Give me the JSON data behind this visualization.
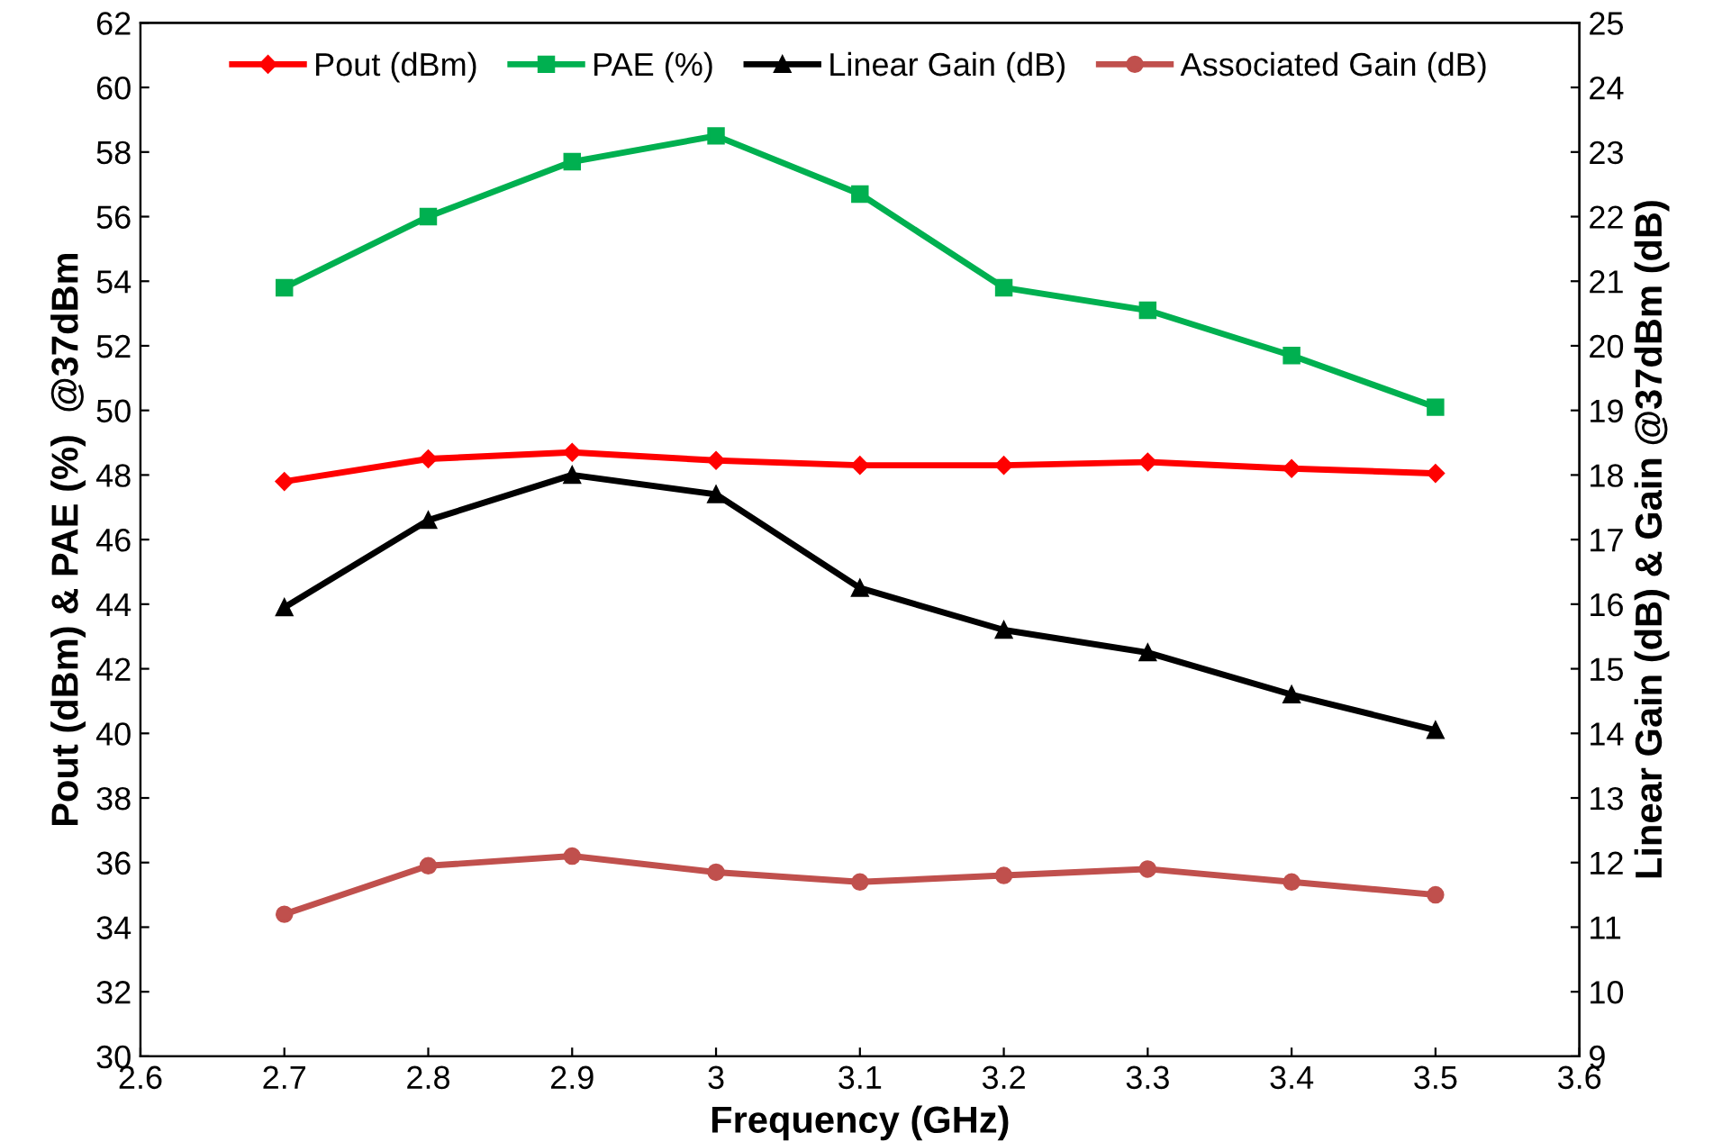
{
  "chart_data": {
    "type": "line",
    "xlabel": "Frequency (GHz)",
    "ylabel": "Pout (dBm) & PAE (%)  @37dBm",
    "y2label": "Linear Gain (dB) & Gain @37dBm (dB)",
    "x": [
      2.7,
      2.8,
      2.9,
      3.0,
      3.1,
      3.2,
      3.3,
      3.4,
      3.5
    ],
    "series": [
      {
        "name": "Pout (dBm)",
        "color": "#ff0000",
        "marker": "diamond",
        "values": [
          47.8,
          48.5,
          48.7,
          48.45,
          48.3,
          48.3,
          48.4,
          48.2,
          48.05
        ]
      },
      {
        "name": "PAE (%)",
        "color": "#00b050",
        "marker": "square",
        "values": [
          53.8,
          56.0,
          57.7,
          58.5,
          56.7,
          53.8,
          53.1,
          51.7,
          50.1
        ]
      },
      {
        "name": "Linear Gain (dB)",
        "color": "#000000",
        "marker": "triangle",
        "axis": "y2",
        "values": [
          15.95,
          17.3,
          18.0,
          17.7,
          16.25,
          15.6,
          15.25,
          14.6,
          14.05
        ]
      },
      {
        "name": "Associated Gain (dB)",
        "color": "#c0504d",
        "marker": "circle",
        "axis": "y2",
        "values": [
          11.2,
          11.95,
          12.1,
          11.85,
          11.7,
          11.8,
          11.9,
          11.7,
          11.5
        ]
      }
    ],
    "xlim": [
      2.6,
      3.6
    ],
    "xticks": [
      2.6,
      2.7,
      2.8,
      2.9,
      3,
      3.1,
      3.2,
      3.3,
      3.4,
      3.5,
      3.6
    ],
    "ylim": [
      30,
      62
    ],
    "yticks": [
      30,
      32,
      34,
      36,
      38,
      40,
      42,
      44,
      46,
      48,
      50,
      52,
      54,
      56,
      58,
      60,
      62
    ],
    "y2lim": [
      9,
      25
    ],
    "y2ticks": [
      9,
      10,
      11,
      12,
      13,
      14,
      15,
      16,
      17,
      18,
      19,
      20,
      21,
      22,
      23,
      24,
      25
    ],
    "grid": false,
    "legend": "top",
    "line_style": "solid"
  }
}
